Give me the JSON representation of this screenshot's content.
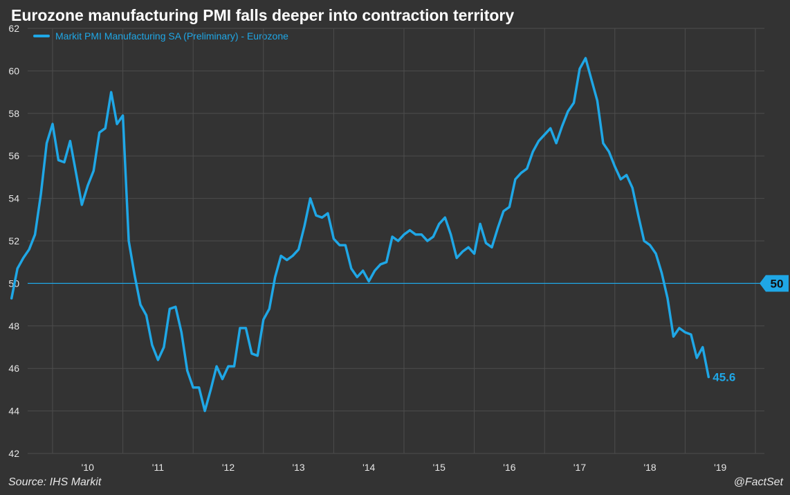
{
  "header": {
    "title": "Eurozone manufacturing PMI falls deeper into contraction territory"
  },
  "footer": {
    "source": "Source: IHS Markit",
    "credit": "@FactSet"
  },
  "colors": {
    "line": "#1fa7e6",
    "background": "#333333",
    "grid": "#4d4d4d",
    "text": "#e6e6e6"
  },
  "chart_data": {
    "type": "line",
    "title": "Eurozone manufacturing PMI falls deeper into contraction territory",
    "xlabel": "",
    "ylabel": "",
    "ylim": [
      42,
      62
    ],
    "yticks": [
      42,
      44,
      46,
      48,
      50,
      52,
      54,
      56,
      58,
      60,
      62
    ],
    "x_tick_labels": [
      "'10",
      "'11",
      "'12",
      "'13",
      "'14",
      "'15",
      "'16",
      "'17",
      "'18",
      "'19"
    ],
    "x_start": "2009-06",
    "reference_line": {
      "value": 50,
      "label": "50"
    },
    "last_value_label": "45.6",
    "series": [
      {
        "name": "Markit PMI Manufacturing SA (Preliminary) - Eurozone",
        "values": [
          49.3,
          50.7,
          51.2,
          51.6,
          52.3,
          54.2,
          56.6,
          57.5,
          55.8,
          55.7,
          56.7,
          55.2,
          53.7,
          54.6,
          55.3,
          57.1,
          57.3,
          59.0,
          57.5,
          57.9,
          52.0,
          50.4,
          49.0,
          48.5,
          47.1,
          46.4,
          47.0,
          48.8,
          48.9,
          47.7,
          45.9,
          45.1,
          45.1,
          44.0,
          45.0,
          46.1,
          45.5,
          46.1,
          46.1,
          47.9,
          47.9,
          46.7,
          46.6,
          48.3,
          48.8,
          50.3,
          51.3,
          51.1,
          51.3,
          51.6,
          52.7,
          54.0,
          53.2,
          53.1,
          53.3,
          52.1,
          51.8,
          51.8,
          50.7,
          50.3,
          50.6,
          50.1,
          50.6,
          50.9,
          51.0,
          52.2,
          52.0,
          52.3,
          52.5,
          52.3,
          52.3,
          52.0,
          52.2,
          52.8,
          53.1,
          52.3,
          51.2,
          51.5,
          51.7,
          51.4,
          52.8,
          51.9,
          51.7,
          52.6,
          53.4,
          53.6,
          54.9,
          55.2,
          55.4,
          56.2,
          56.7,
          57.0,
          57.3,
          56.6,
          57.4,
          58.1,
          58.5,
          60.1,
          60.6,
          59.6,
          58.6,
          56.6,
          56.2,
          55.5,
          54.9,
          55.1,
          54.5,
          53.2,
          52.0,
          51.8,
          51.4,
          50.5,
          49.3,
          47.5,
          47.9,
          47.7,
          47.6,
          46.5,
          47.0,
          45.6
        ]
      }
    ]
  }
}
